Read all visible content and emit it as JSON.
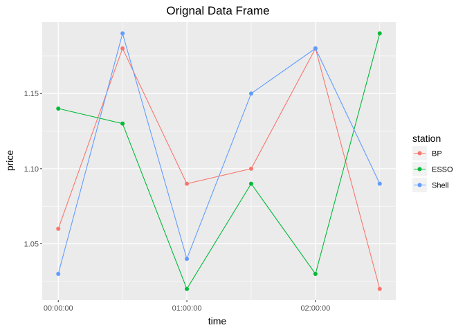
{
  "chart_data": {
    "type": "line",
    "title": "Orignal Data Frame",
    "xlabel": "time",
    "ylabel": "price",
    "x": [
      "00:00:00",
      "00:30:00",
      "01:00:00",
      "01:30:00",
      "02:00:00",
      "02:30:00"
    ],
    "x_ticks": [
      "00:00:00",
      "01:00:00",
      "02:00:00"
    ],
    "y_ticks": [
      "1.05",
      "1.10",
      "1.15"
    ],
    "y_tick_values": [
      1.05,
      1.1,
      1.15
    ],
    "ylim": [
      1.0125,
      1.1975
    ],
    "xlim_minutes": [
      -7.5,
      157.5
    ],
    "grid": true,
    "legend": {
      "title": "station",
      "position": "right"
    },
    "series": [
      {
        "name": "BP",
        "color": "#F8766D",
        "values": [
          1.06,
          1.18,
          1.09,
          1.1,
          1.18,
          1.02
        ]
      },
      {
        "name": "ESSO",
        "color": "#00BA38",
        "values": [
          1.14,
          1.13,
          1.02,
          1.09,
          1.03,
          1.19
        ]
      },
      {
        "name": "Shell",
        "color": "#619CFF",
        "values": [
          1.03,
          1.19,
          1.04,
          1.15,
          1.18,
          1.09
        ]
      }
    ],
    "panel_background": "#EBEBEB",
    "gridline_color": "#FFFFFF"
  }
}
